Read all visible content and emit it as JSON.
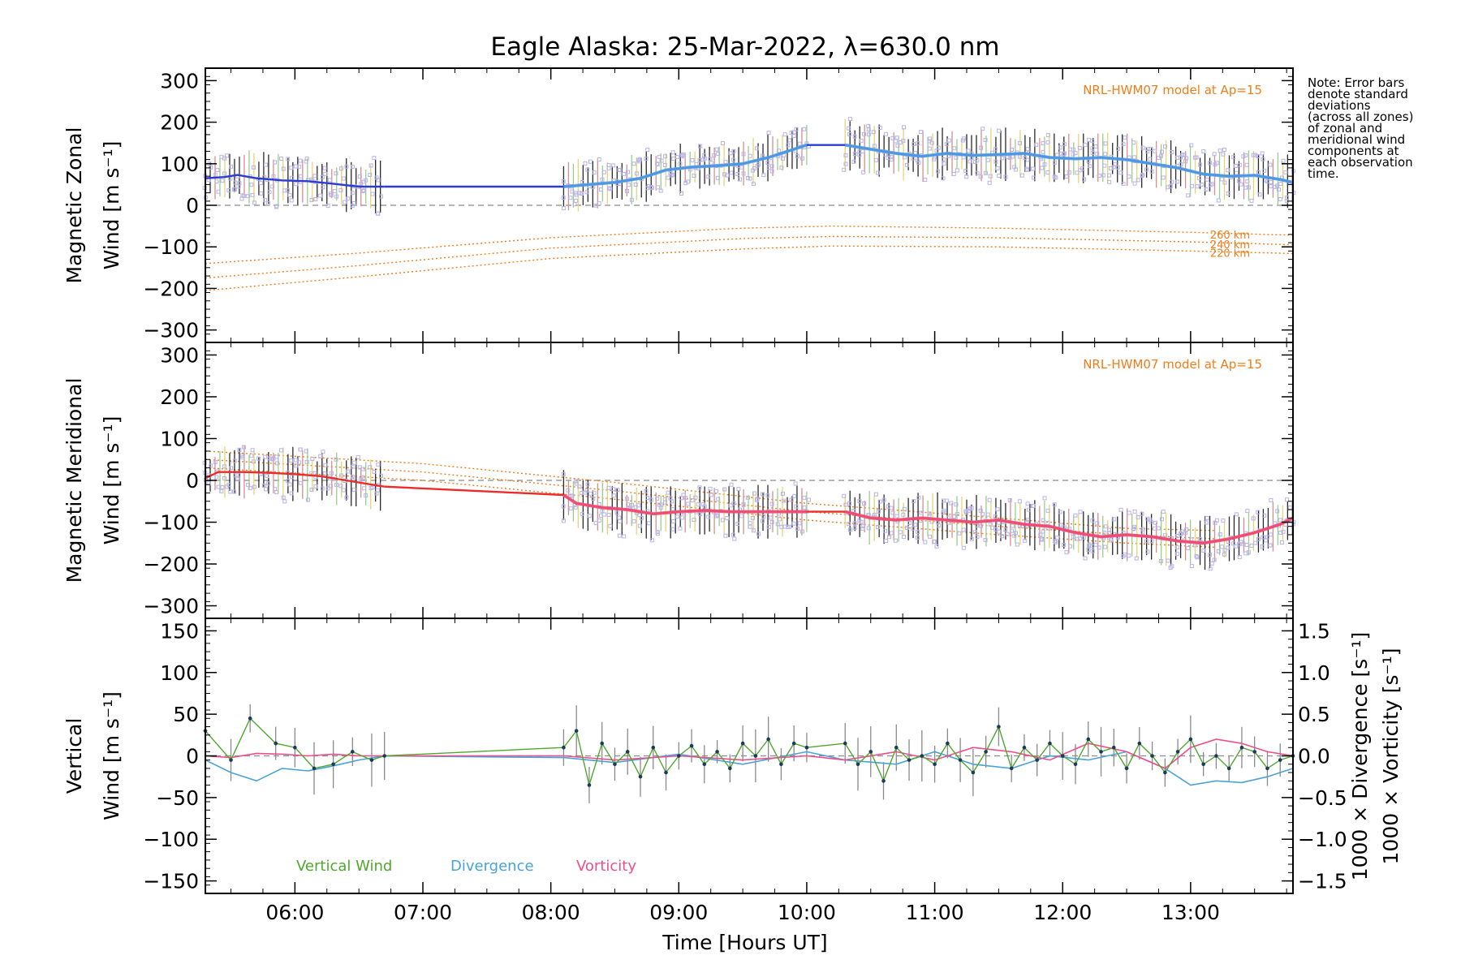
{
  "title": "Eagle Alaska: 25-Mar-2022, λ=630.0 nm",
  "note_lines": [
    "Note: Error bars",
    "denote standard",
    "deviations",
    "(across all zones)",
    "of zonal and",
    "meridional wind",
    "components at",
    "each observation",
    "time."
  ],
  "colors": {
    "zonal": "#2a3bd6",
    "zonal_fit": "#53a6e6",
    "meridional": "#ee2a2a",
    "meridional_fit": "#f0507c",
    "model": "#ef7d1a",
    "vertical": "#4fa82e",
    "divergence": "#4aa3d8",
    "vorticity": "#ee4e8a",
    "scatter": "#b8b4e6",
    "zero_line": "#8a8a8a"
  },
  "xaxis": {
    "label": "Time [Hours UT]",
    "range": [
      5.3,
      13.8
    ],
    "ticks": [
      6,
      7,
      8,
      9,
      10,
      11,
      12,
      13
    ],
    "tick_labels": [
      "06:00",
      "07:00",
      "08:00",
      "09:00",
      "10:00",
      "11:00",
      "12:00",
      "13:00"
    ]
  },
  "model_label": "NRL-HWM07 model at Ap=15",
  "chart_data": [
    {
      "type": "line",
      "panel": "zonal",
      "ylabel_line1": "Magnetic Zonal",
      "ylabel_line2": "Wind [m s⁻¹]",
      "ylim": [
        -330,
        330
      ],
      "yticks": [
        -300,
        -200,
        -100,
        0,
        100,
        200,
        300
      ],
      "ytick_labels": [
        "−300",
        "−200",
        "−100",
        "0",
        "100",
        "200",
        "300"
      ],
      "model_curves": [
        {
          "name": "260 km",
          "x": [
            5.3,
            6.5,
            8,
            9.5,
            10.2,
            11.5,
            13,
            13.8
          ],
          "y": [
            -140,
            -115,
            -78,
            -55,
            -50,
            -55,
            -65,
            -72
          ]
        },
        {
          "name": "240 km",
          "x": [
            5.3,
            6.5,
            8,
            9.5,
            10.2,
            11.5,
            13,
            13.8
          ],
          "y": [
            -175,
            -145,
            -103,
            -80,
            -75,
            -78,
            -88,
            -95
          ]
        },
        {
          "name": "220 km",
          "x": [
            5.3,
            6.5,
            8,
            9.5,
            10.2,
            11.5,
            13,
            13.8
          ],
          "y": [
            -205,
            -172,
            -128,
            -105,
            -98,
            -100,
            -110,
            -116
          ]
        }
      ],
      "series": [
        {
          "segment": "early",
          "x": [
            5.3,
            5.45,
            5.55,
            5.7,
            5.9,
            6.1,
            6.3,
            6.5,
            6.7
          ],
          "y": [
            65,
            68,
            73,
            65,
            60,
            58,
            52,
            45,
            45
          ]
        },
        {
          "segment": "gap",
          "x": [
            6.7,
            8.1
          ],
          "y": [
            45,
            45
          ]
        },
        {
          "segment": "main",
          "x": [
            8.1,
            8.3,
            8.5,
            8.7,
            8.9,
            9.1,
            9.3,
            9.5,
            9.7,
            9.9,
            10.0
          ],
          "y": [
            45,
            50,
            55,
            65,
            85,
            92,
            95,
            100,
            115,
            135,
            145
          ]
        },
        {
          "segment": "gap",
          "x": [
            10.0,
            10.3
          ],
          "y": [
            145,
            145
          ]
        },
        {
          "segment": "late",
          "x": [
            10.3,
            10.5,
            10.7,
            10.9,
            11.1,
            11.3,
            11.5,
            11.7,
            11.9,
            12.1,
            12.3,
            12.5,
            12.7,
            12.9,
            13.1,
            13.3,
            13.5,
            13.7,
            13.8
          ],
          "y": [
            145,
            135,
            125,
            118,
            125,
            120,
            122,
            125,
            115,
            112,
            115,
            110,
            100,
            90,
            75,
            70,
            72,
            62,
            55
          ]
        }
      ]
    },
    {
      "type": "line",
      "panel": "meridional",
      "ylabel_line1": "Magnetic Meridional",
      "ylabel_line2": "Wind [m s⁻¹]",
      "ylim": [
        -330,
        330
      ],
      "yticks": [
        -300,
        -200,
        -100,
        0,
        100,
        200,
        300
      ],
      "ytick_labels": [
        "−300",
        "−200",
        "−100",
        "0",
        "100",
        "200",
        "300"
      ],
      "model_curves": [
        {
          "name": "260 km",
          "x": [
            5.3,
            7,
            8.5,
            10,
            11.5,
            12.5,
            13.2
          ],
          "y": [
            70,
            40,
            -5,
            -55,
            -90,
            -115,
            -120
          ]
        },
        {
          "name": "240 km",
          "x": [
            5.3,
            7,
            8.5,
            10,
            11.5,
            12.5,
            13.2
          ],
          "y": [
            50,
            20,
            -25,
            -75,
            -110,
            -130,
            -140
          ]
        },
        {
          "name": "220 km",
          "x": [
            5.3,
            7,
            8.5,
            10,
            11.5,
            12.5,
            13.2
          ],
          "y": [
            30,
            0,
            -45,
            -95,
            -130,
            -150,
            -160
          ]
        }
      ],
      "series": [
        {
          "segment": "early",
          "x": [
            5.3,
            5.4,
            5.6,
            5.8,
            6.0,
            6.2,
            6.4,
            6.6,
            6.7
          ],
          "y": [
            5,
            20,
            20,
            18,
            15,
            10,
            0,
            -10,
            -15
          ]
        },
        {
          "segment": "gap",
          "x": [
            6.7,
            8.1
          ],
          "y": [
            -15,
            -35
          ]
        },
        {
          "segment": "main",
          "x": [
            8.1,
            8.2,
            8.4,
            8.6,
            8.8,
            9.0,
            9.2,
            9.4,
            9.6,
            9.8,
            10.0
          ],
          "y": [
            -35,
            -55,
            -65,
            -70,
            -80,
            -75,
            -72,
            -75,
            -75,
            -75,
            -75
          ]
        },
        {
          "segment": "gap",
          "x": [
            10.0,
            10.3
          ],
          "y": [
            -75,
            -75
          ]
        },
        {
          "segment": "late",
          "x": [
            10.3,
            10.5,
            10.7,
            10.9,
            11.1,
            11.3,
            11.5,
            11.7,
            11.9,
            12.1,
            12.3,
            12.5,
            12.7,
            12.9,
            13.1,
            13.3,
            13.5,
            13.7,
            13.8
          ],
          "y": [
            -75,
            -90,
            -95,
            -90,
            -95,
            -100,
            -95,
            -105,
            -110,
            -125,
            -135,
            -130,
            -135,
            -145,
            -150,
            -140,
            -125,
            -105,
            -90
          ]
        }
      ]
    },
    {
      "type": "line",
      "panel": "vertical",
      "ylabel_line1": "Vertical",
      "ylabel_line2": "Wind [m s⁻¹]",
      "ylim": [
        -165,
        165
      ],
      "yticks": [
        -150,
        -100,
        -50,
        0,
        50,
        100,
        150
      ],
      "ytick_labels": [
        "−150",
        "−100",
        "−50",
        "0",
        "50",
        "100",
        "150"
      ],
      "right_ylim": [
        -1.65,
        1.65
      ],
      "right_yticks": [
        -1.5,
        -1.0,
        -0.5,
        0.0,
        0.5,
        1.0,
        1.5
      ],
      "right_ytick_labels": [
        "−1.5",
        "−1.0",
        "−0.5",
        "0.0",
        "0.5",
        "1.0",
        "1.5"
      ],
      "right_ylabel_1": "1000 × Divergence [s⁻¹]",
      "right_ylabel_2": "1000 × Vorticity [s⁻¹]",
      "legend": [
        "Vertical Wind",
        "Divergence",
        "Vorticity"
      ],
      "series": [
        {
          "name": "Vertical Wind",
          "x": [
            5.3,
            5.5,
            5.65,
            5.85,
            6.0,
            6.15,
            6.3,
            6.45,
            6.6,
            6.7,
            8.1,
            8.2,
            8.3,
            8.4,
            8.5,
            8.6,
            8.7,
            8.8,
            8.9,
            9.0,
            9.1,
            9.2,
            9.3,
            9.4,
            9.5,
            9.6,
            9.7,
            9.8,
            9.9,
            10.0,
            10.3,
            10.4,
            10.5,
            10.6,
            10.7,
            10.8,
            10.9,
            11.0,
            11.1,
            11.2,
            11.3,
            11.4,
            11.5,
            11.6,
            11.7,
            11.8,
            11.9,
            12.0,
            12.1,
            12.2,
            12.3,
            12.4,
            12.5,
            12.6,
            12.7,
            12.8,
            12.9,
            13.0,
            13.1,
            13.2,
            13.3,
            13.4,
            13.5,
            13.6,
            13.7,
            13.8
          ],
          "y": [
            30,
            -5,
            45,
            15,
            10,
            -15,
            -10,
            5,
            -5,
            0,
            10,
            30,
            -35,
            15,
            -10,
            5,
            -25,
            10,
            -20,
            0,
            12,
            -10,
            5,
            -15,
            15,
            0,
            20,
            -10,
            15,
            10,
            15,
            -10,
            5,
            -30,
            10,
            -5,
            0,
            -10,
            15,
            -5,
            -20,
            5,
            35,
            -15,
            10,
            -5,
            15,
            0,
            -10,
            20,
            5,
            10,
            -15,
            15,
            0,
            -20,
            5,
            20,
            -10,
            0,
            -15,
            10,
            5,
            -15,
            -5,
            0
          ]
        },
        {
          "name": "Divergence",
          "x": [
            5.3,
            5.5,
            5.7,
            5.9,
            6.1,
            6.3,
            6.5,
            6.7,
            8.1,
            8.5,
            9.0,
            9.5,
            10.0,
            10.3,
            10.7,
            11.0,
            11.3,
            11.6,
            11.9,
            12.2,
            12.5,
            12.8,
            13.0,
            13.2,
            13.4,
            13.6,
            13.8
          ],
          "y": [
            -0.05,
            -0.2,
            -0.3,
            -0.15,
            -0.18,
            -0.12,
            -0.05,
            0.0,
            -0.02,
            -0.08,
            0.02,
            -0.1,
            0.05,
            -0.05,
            -0.1,
            0.05,
            -0.1,
            -0.15,
            0.0,
            -0.05,
            0.05,
            -0.15,
            -0.35,
            -0.3,
            -0.32,
            -0.25,
            -0.15
          ]
        },
        {
          "name": "Vorticity",
          "x": [
            5.3,
            5.5,
            5.7,
            5.9,
            6.1,
            6.3,
            6.5,
            6.7,
            8.1,
            8.5,
            9.0,
            9.5,
            10.0,
            10.3,
            10.7,
            11.0,
            11.3,
            11.6,
            11.9,
            12.2,
            12.5,
            12.8,
            13.0,
            13.2,
            13.4,
            13.6,
            13.8
          ],
          "y": [
            0.0,
            -0.02,
            0.03,
            0.02,
            0.0,
            0.02,
            0.0,
            0.0,
            0.0,
            -0.05,
            0.0,
            -0.05,
            0.0,
            -0.05,
            0.05,
            -0.05,
            0.1,
            0.05,
            -0.05,
            0.15,
            0.05,
            -0.15,
            0.1,
            0.2,
            0.15,
            0.05,
            0.0
          ]
        }
      ]
    }
  ]
}
